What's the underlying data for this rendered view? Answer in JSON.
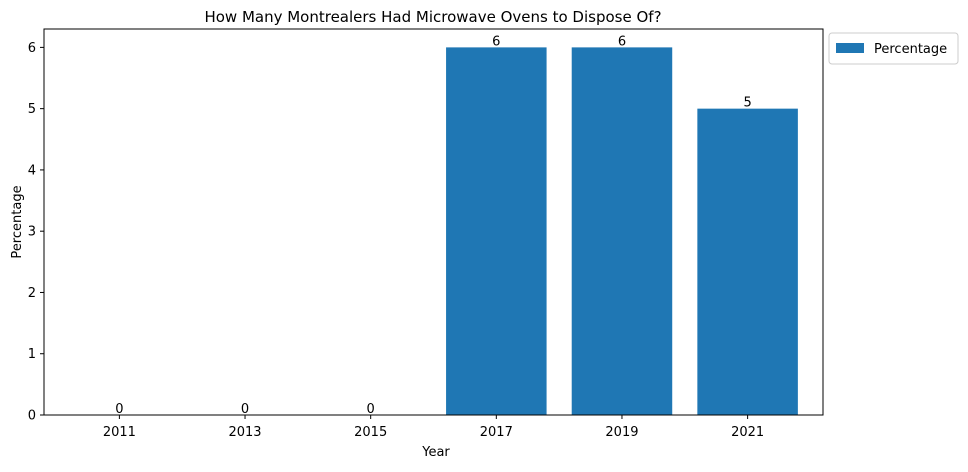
{
  "chart_data": {
    "type": "bar",
    "title": "How Many Montrealers Had Microwave Ovens to Dispose Of?",
    "xlabel": "Year",
    "ylabel": "Percentage",
    "categories": [
      "2011",
      "2013",
      "2015",
      "2017",
      "2019",
      "2021"
    ],
    "series": [
      {
        "name": "Percentage",
        "values": [
          0,
          0,
          0,
          6,
          6,
          5
        ],
        "color": "#1f77b4"
      }
    ],
    "data_labels": [
      "0",
      "0",
      "0",
      "6",
      "6",
      "5"
    ],
    "ylim": [
      0,
      6.3
    ],
    "yticks": [
      0,
      1,
      2,
      3,
      4,
      5,
      6
    ],
    "ytick_labels": [
      "0",
      "1",
      "2",
      "3",
      "4",
      "5",
      "6"
    ],
    "grid": false,
    "legend": {
      "placement": "outside-top-right",
      "entries": [
        "Percentage"
      ]
    }
  }
}
